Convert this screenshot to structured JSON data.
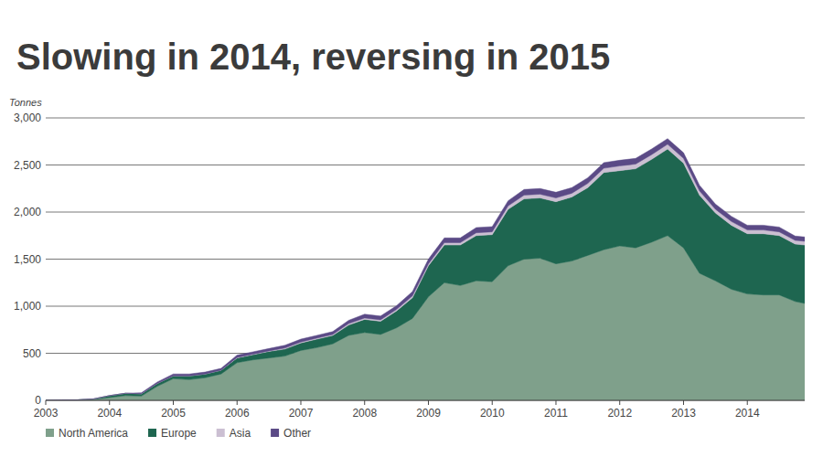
{
  "chart_data": {
    "type": "area",
    "title": "Slowing in 2014, reversing in 2015",
    "y_label": "Tonnes",
    "stacked": true,
    "grid": true,
    "legend": "bottom",
    "x": [
      2003,
      2003.25,
      2003.5,
      2003.75,
      2004,
      2004.25,
      2004.5,
      2004.75,
      2005,
      2005.25,
      2005.5,
      2005.75,
      2006,
      2006.25,
      2006.5,
      2006.75,
      2007,
      2007.25,
      2007.5,
      2007.75,
      2008,
      2008.25,
      2008.5,
      2008.75,
      2009,
      2009.25,
      2009.5,
      2009.75,
      2010,
      2010.25,
      2010.5,
      2010.75,
      2011,
      2011.25,
      2011.5,
      2011.75,
      2012,
      2012.25,
      2012.5,
      2012.75,
      2013,
      2013.25,
      2013.5,
      2013.75,
      2014,
      2014.25,
      2014.5,
      2014.75,
      2014.9
    ],
    "xlim": [
      2003,
      2014.9
    ],
    "xticks": [
      2003,
      2004,
      2005,
      2006,
      2007,
      2008,
      2009,
      2010,
      2011,
      2012,
      2013,
      2014
    ],
    "ylim": [
      0,
      3000
    ],
    "yticks": [
      0,
      500,
      {
        "value": 1000,
        "label": "1,000"
      },
      {
        "value": 1500,
        "label": "1,500"
      },
      {
        "value": 2000,
        "label": "2,000"
      },
      {
        "value": 2500,
        "label": "2,500"
      },
      {
        "value": 3000,
        "label": "3,000"
      }
    ],
    "series": [
      {
        "name": "North America",
        "color": "#7fa08b",
        "values": [
          0,
          5,
          5,
          10,
          30,
          50,
          45,
          150,
          230,
          220,
          240,
          280,
          400,
          430,
          450,
          470,
          530,
          560,
          600,
          690,
          720,
          700,
          770,
          870,
          1100,
          1250,
          1220,
          1270,
          1260,
          1430,
          1500,
          1510,
          1450,
          1480,
          1540,
          1600,
          1640,
          1620,
          1680,
          1750,
          1620,
          1350,
          1270,
          1180,
          1130,
          1120,
          1120,
          1050,
          1030
        ]
      },
      {
        "name": "Europe",
        "color": "#1e6650",
        "values": [
          0,
          0,
          0,
          5,
          20,
          25,
          25,
          30,
          30,
          40,
          40,
          40,
          50,
          55,
          70,
          75,
          80,
          90,
          90,
          110,
          140,
          140,
          180,
          220,
          330,
          400,
          430,
          480,
          500,
          600,
          640,
          640,
          660,
          680,
          720,
          820,
          800,
          840,
          880,
          920,
          900,
          830,
          720,
          680,
          640,
          650,
          630,
          610,
          620
        ]
      },
      {
        "name": "Asia",
        "color": "#cbbfd2",
        "values": [
          0,
          0,
          0,
          0,
          0,
          0,
          0,
          0,
          0,
          0,
          0,
          0,
          5,
          5,
          5,
          10,
          10,
          10,
          10,
          15,
          15,
          15,
          15,
          20,
          20,
          25,
          25,
          30,
          30,
          35,
          40,
          40,
          40,
          40,
          45,
          45,
          50,
          50,
          50,
          50,
          50,
          45,
          40,
          40,
          40,
          40,
          40,
          40,
          40
        ]
      },
      {
        "name": "Other",
        "color": "#5b4a86",
        "values": [
          0,
          0,
          0,
          0,
          0,
          0,
          10,
          15,
          20,
          20,
          20,
          20,
          25,
          25,
          25,
          30,
          30,
          30,
          30,
          35,
          40,
          40,
          40,
          45,
          50,
          50,
          50,
          55,
          55,
          55,
          60,
          60,
          60,
          60,
          60,
          60,
          60,
          60,
          60,
          60,
          60,
          60,
          55,
          55,
          50,
          50,
          50,
          45,
          45
        ]
      }
    ]
  }
}
